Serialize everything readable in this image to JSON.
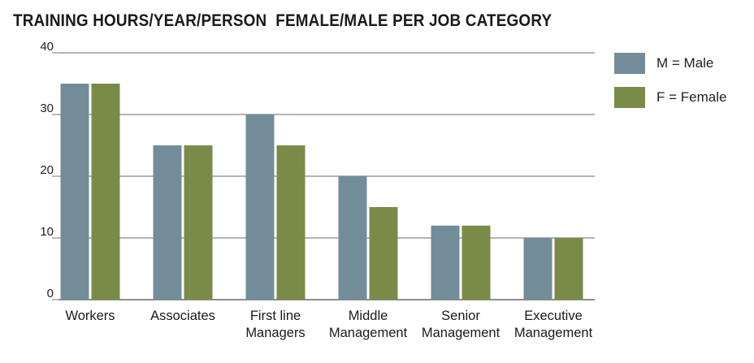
{
  "title": "TRAINING HOURS/YEAR/PERSON  FEMALE/MALE PER JOB CATEGORY",
  "legend": [
    {
      "label": "M = Male",
      "color": "#738c99"
    },
    {
      "label": "F = Female",
      "color": "#7a8b48"
    }
  ],
  "chart_data": {
    "type": "bar",
    "title": "TRAINING HOURS/YEAR/PERSON  FEMALE/MALE PER JOB CATEGORY",
    "categories": [
      [
        "Workers"
      ],
      [
        "Associates"
      ],
      [
        "First line",
        "Managers"
      ],
      [
        "Middle",
        "Management"
      ],
      [
        "Senior",
        "Management"
      ],
      [
        "Executive",
        "Management"
      ]
    ],
    "series": [
      {
        "name": "M = Male",
        "color": "#738c99",
        "values": [
          35,
          25,
          30,
          20,
          12,
          10
        ]
      },
      {
        "name": "F = Female",
        "color": "#7a8b48",
        "values": [
          35,
          25,
          25,
          15,
          12,
          10
        ]
      }
    ],
    "ylim": [
      0,
      40
    ],
    "yticks": [
      0,
      10,
      20,
      30,
      40
    ],
    "grid": true,
    "legend_position": "right"
  }
}
